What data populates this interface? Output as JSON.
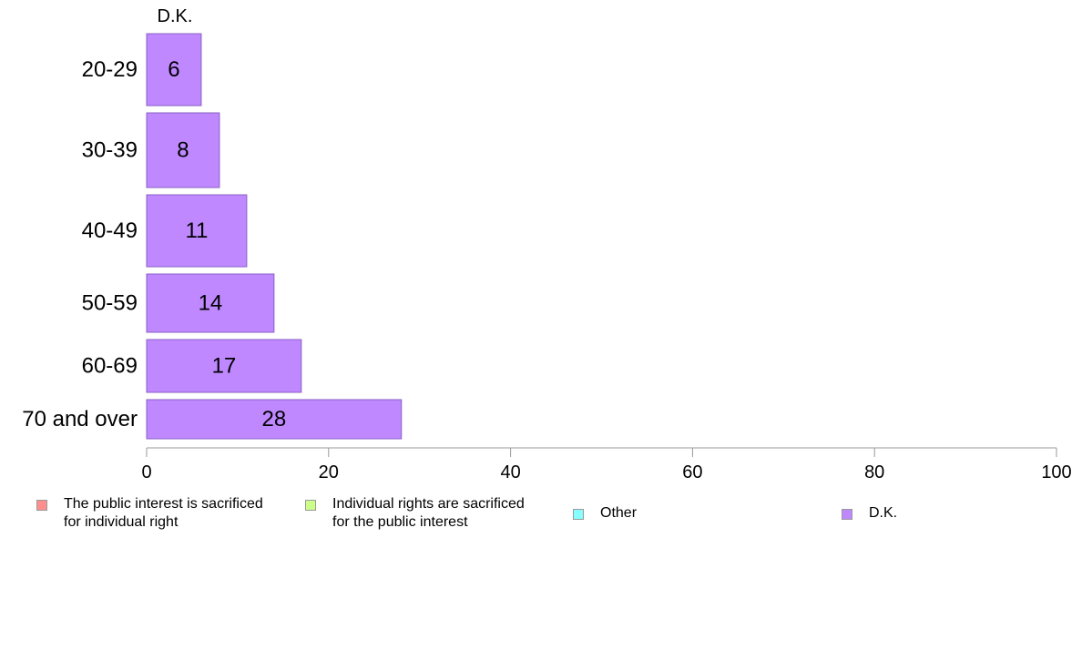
{
  "chart_data": {
    "type": "bar",
    "orientation": "horizontal",
    "panel_title": "D.K.",
    "categories": [
      "20-29",
      "30-39",
      "40-49",
      "50-59",
      "60-69",
      "70 and over"
    ],
    "series": [
      {
        "name": "D.K.",
        "values": [
          6,
          8,
          11,
          14,
          17,
          28
        ],
        "color": "#bf88ff"
      }
    ],
    "x_ticks": [
      "0",
      "20",
      "40",
      "60",
      "80",
      "100"
    ],
    "xlim": [
      0,
      100
    ],
    "grid": false,
    "legend_position": "bottom",
    "legend": [
      {
        "label": "The public interest is sacrificed\nfor individual right",
        "color": "#ff8f8f"
      },
      {
        "label": "Individual rights are sacrificed\nfor the public interest",
        "color": "#ccff88"
      },
      {
        "label": "Other",
        "color": "#88ffff"
      },
      {
        "label": "D.K.",
        "color": "#bf88ff"
      }
    ]
  }
}
